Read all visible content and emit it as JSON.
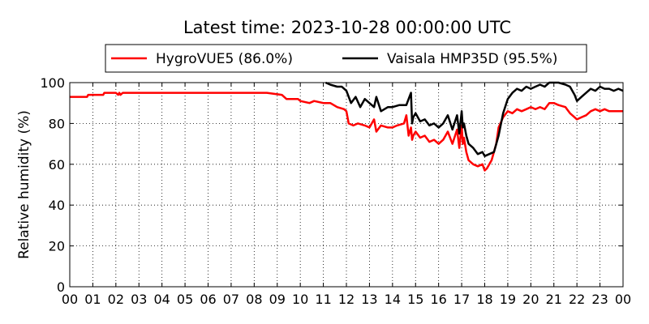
{
  "chart_data": {
    "type": "line",
    "title": "Latest time: 2023-10-28 00:00:00 UTC",
    "xlabel": "",
    "ylabel": "Relative humidity (%)",
    "xlim": [
      0,
      24
    ],
    "ylim": [
      0,
      100
    ],
    "x_tick_labels": [
      "00",
      "01",
      "02",
      "03",
      "04",
      "05",
      "06",
      "07",
      "08",
      "09",
      "10",
      "11",
      "12",
      "13",
      "14",
      "15",
      "16",
      "17",
      "18",
      "19",
      "20",
      "21",
      "22",
      "23",
      "00"
    ],
    "y_ticks": [
      0,
      20,
      40,
      60,
      80,
      100
    ],
    "grid": true,
    "legend_placement": "top",
    "series": [
      {
        "name": "HygroVUE5 (86.0%)",
        "color": "#ff0000",
        "x": [
          0,
          0.75,
          0.8,
          1.45,
          1.5,
          2.0,
          2.1,
          2.15,
          2.2,
          2.3,
          2.4,
          8.0,
          8.5,
          8.55,
          9.2,
          9.4,
          9.9,
          10.0,
          10.4,
          10.6,
          11.0,
          11.3,
          11.6,
          11.9,
          12.0,
          12.1,
          12.3,
          12.5,
          12.8,
          13.0,
          13.2,
          13.3,
          13.5,
          13.8,
          14.0,
          14.2,
          14.5,
          14.6,
          14.7,
          14.8,
          14.85,
          14.9,
          15.0,
          15.2,
          15.4,
          15.6,
          15.8,
          16.0,
          16.2,
          16.4,
          16.6,
          16.8,
          16.9,
          17.0,
          17.05,
          17.1,
          17.2,
          17.3,
          17.5,
          17.7,
          17.9,
          18.0,
          18.1,
          18.3,
          18.5,
          18.6,
          18.8,
          19.0,
          19.2,
          19.4,
          19.6,
          19.8,
          20.0,
          20.2,
          20.4,
          20.6,
          20.8,
          21.0,
          21.2,
          21.5,
          21.7,
          21.9,
          22.0,
          22.2,
          22.4,
          22.6,
          22.8,
          23.0,
          23.2,
          23.4,
          23.6,
          23.8,
          24.0
        ],
        "y": [
          93,
          93,
          94,
          94,
          95,
          95,
          94,
          95,
          94,
          95,
          95,
          95,
          95,
          95,
          94,
          92,
          92,
          91,
          90,
          91,
          90,
          90,
          88,
          87,
          86,
          80,
          79,
          80,
          79,
          78,
          82,
          76,
          79,
          78,
          78,
          79,
          80,
          84,
          74,
          78,
          72,
          74,
          76,
          73,
          74,
          71,
          72,
          70,
          72,
          76,
          70,
          77,
          68,
          79,
          70,
          73,
          66,
          62,
          60,
          59,
          60,
          57,
          58,
          62,
          70,
          78,
          83,
          86,
          85,
          87,
          86,
          87,
          88,
          87,
          88,
          87,
          90,
          90,
          89,
          88,
          85,
          83,
          82,
          83,
          84,
          86,
          87,
          86,
          87,
          86,
          86,
          86,
          86
        ]
      },
      {
        "name": "Vaisala HMP35D (95.5%)",
        "color": "#000000",
        "x": [
          11.1,
          11.3,
          11.6,
          11.8,
          12.0,
          12.2,
          12.4,
          12.6,
          12.8,
          13.0,
          13.2,
          13.3,
          13.5,
          13.8,
          14.0,
          14.3,
          14.6,
          14.7,
          14.8,
          14.85,
          14.9,
          15.0,
          15.2,
          15.4,
          15.6,
          15.8,
          16.0,
          16.2,
          16.4,
          16.6,
          16.8,
          16.9,
          17.0,
          17.05,
          17.1,
          17.2,
          17.3,
          17.5,
          17.7,
          17.9,
          18.0,
          18.2,
          18.4,
          18.6,
          18.8,
          19.0,
          19.2,
          19.4,
          19.6,
          19.8,
          20.0,
          20.2,
          20.4,
          20.6,
          20.8,
          21.0,
          21.2,
          21.5,
          21.7,
          21.9,
          22.0,
          22.2,
          22.4,
          22.6,
          22.8,
          23.0,
          23.2,
          23.4,
          23.6,
          23.8,
          24.0
        ],
        "y": [
          100,
          99,
          98,
          98,
          96,
          90,
          93,
          88,
          92,
          90,
          88,
          93,
          86,
          88,
          88,
          89,
          89,
          92,
          95,
          80,
          83,
          85,
          81,
          82,
          79,
          80,
          78,
          80,
          84,
          77,
          84,
          75,
          86,
          78,
          80,
          74,
          70,
          68,
          65,
          66,
          64,
          65,
          66,
          74,
          85,
          92,
          95,
          97,
          96,
          98,
          97,
          98,
          99,
          98,
          100,
          100,
          100,
          99,
          98,
          94,
          91,
          93,
          95,
          97,
          96,
          98,
          97,
          97,
          96,
          97,
          96
        ]
      }
    ]
  }
}
